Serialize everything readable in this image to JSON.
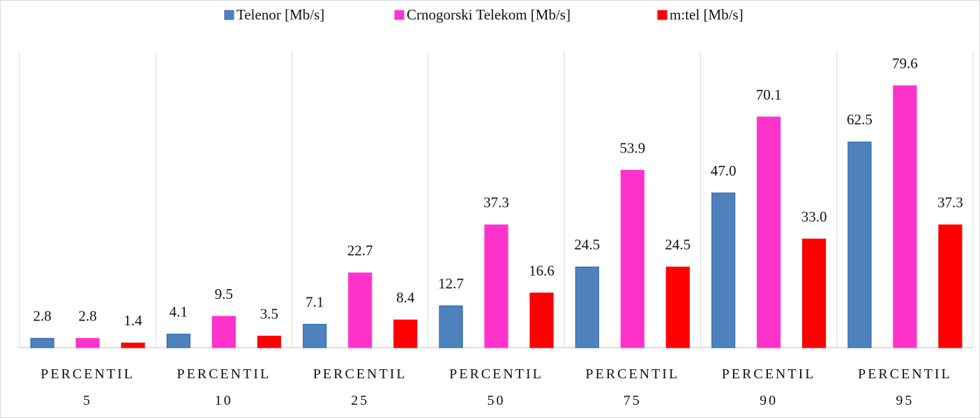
{
  "chart_data": {
    "type": "bar",
    "categories": [
      "PERCENTIL 5",
      "PERCENTIL 10",
      "PERCENTIL 25",
      "PERCENTIL 50",
      "PERCENTIL 75",
      "PERCENTIL 90",
      "PERCENTIL 95"
    ],
    "series": [
      {
        "name": "Telenor [Mb/s]",
        "color": "#4f81bd",
        "values": [
          2.8,
          4.1,
          7.1,
          12.7,
          24.5,
          47.0,
          62.5
        ],
        "value_labels": [
          "2.8",
          "4.1",
          "7.1",
          "12.7",
          "24.5",
          "47.0",
          "62.5"
        ]
      },
      {
        "name": "Crnogorski Telekom [Mb/s]",
        "color": "#ff33cc",
        "values": [
          2.8,
          9.5,
          22.7,
          37.3,
          53.9,
          70.1,
          79.6
        ],
        "value_labels": [
          "2.8",
          "9.5",
          "22.7",
          "37.3",
          "53.9",
          "70.1",
          "79.6"
        ]
      },
      {
        "name": "m:tel [Mb/s]",
        "color": "#ff0000",
        "values": [
          1.4,
          3.5,
          8.4,
          16.6,
          24.5,
          33.0,
          37.3
        ],
        "value_labels": [
          "1.4",
          "3.5",
          "8.4",
          "16.6",
          "24.5",
          "33.0",
          "37.3"
        ]
      }
    ],
    "ylim": [
      0,
      90
    ],
    "legend": "top"
  }
}
